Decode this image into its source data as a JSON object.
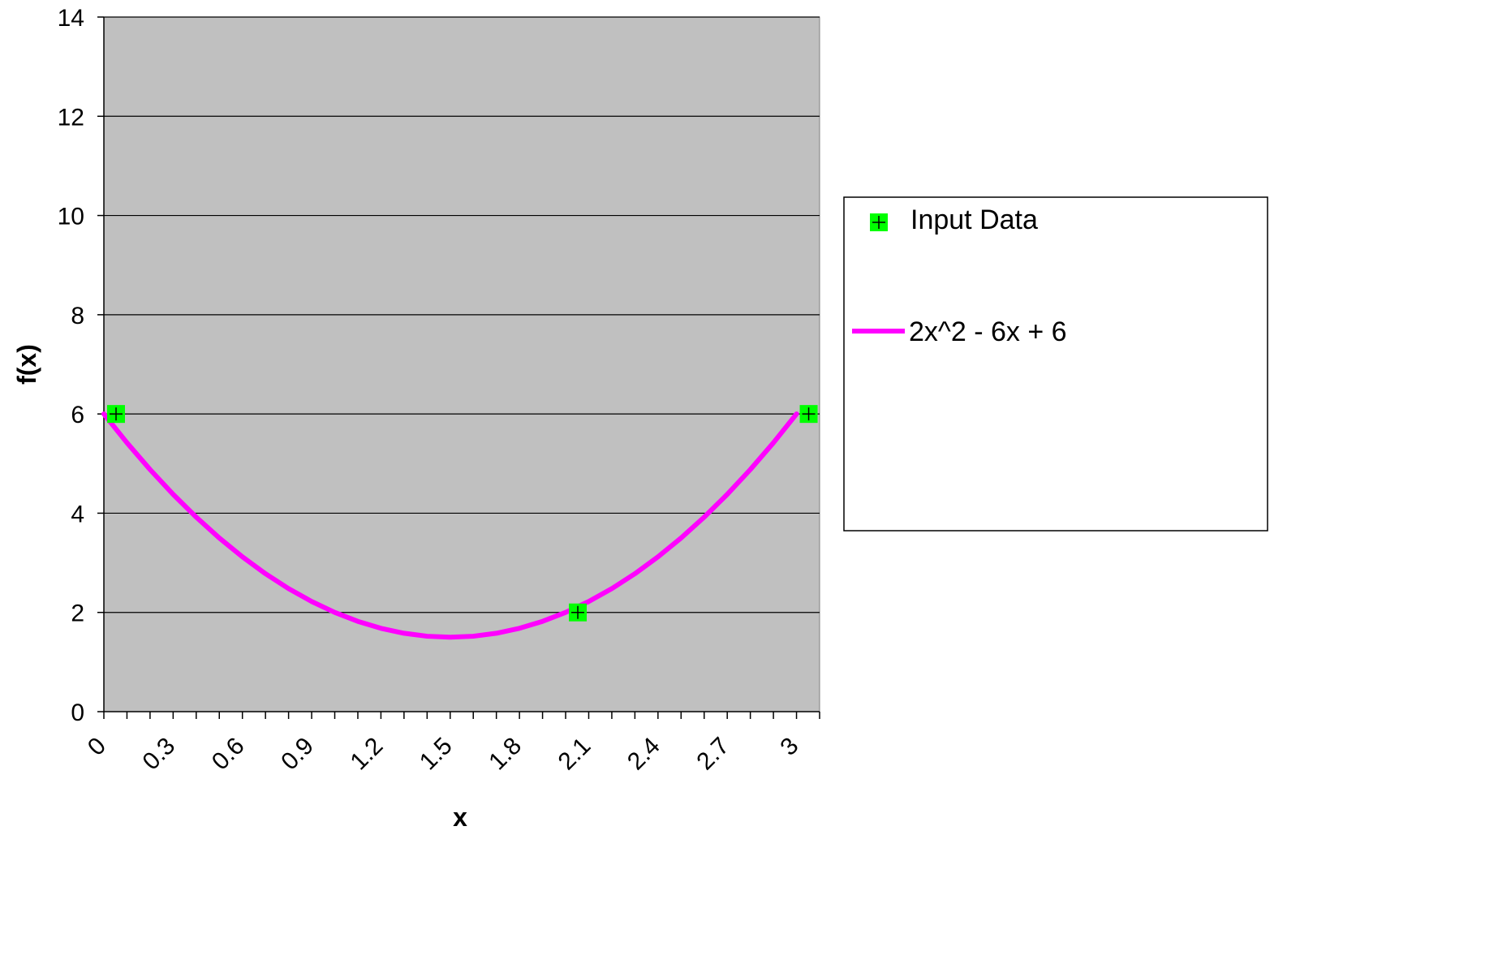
{
  "chart_data": {
    "type": "line",
    "title": "",
    "xlabel": "x",
    "ylabel": "f(x)",
    "xlim": [
      0,
      3.1
    ],
    "ylim": [
      0,
      14
    ],
    "x_ticks": [
      "0",
      "0.3",
      "0.6",
      "0.9",
      "1.2",
      "1.5",
      "1.8",
      "2.1",
      "2.4",
      "2.7",
      "3"
    ],
    "y_ticks": [
      "0",
      "2",
      "4",
      "6",
      "8",
      "10",
      "12",
      "14"
    ],
    "grid": "horizontal",
    "legend_position": "right",
    "colors": {
      "plot_background": "#c0c0c0",
      "curve": "#ff00ff",
      "marker": "#00ff00"
    },
    "series": [
      {
        "name": "Input Data",
        "kind": "scatter",
        "marker": "square-plus",
        "x": [
          0,
          2,
          3
        ],
        "y": [
          6,
          2,
          6
        ]
      },
      {
        "name": "2x^2 - 6x + 6",
        "kind": "line",
        "x": [
          0,
          0.1,
          0.2,
          0.3,
          0.4,
          0.5,
          0.6,
          0.7,
          0.8,
          0.9,
          1.0,
          1.1,
          1.2,
          1.3,
          1.4,
          1.5,
          1.6,
          1.7,
          1.8,
          1.9,
          2.0,
          2.1,
          2.2,
          2.3,
          2.4,
          2.5,
          2.6,
          2.7,
          2.8,
          2.9,
          3.0
        ],
        "y": [
          6,
          5.42,
          4.88,
          4.38,
          3.92,
          3.5,
          3.12,
          2.78,
          2.48,
          2.22,
          2.0,
          1.82,
          1.68,
          1.58,
          1.52,
          1.5,
          1.52,
          1.58,
          1.68,
          1.82,
          2.0,
          2.22,
          2.48,
          2.78,
          3.12,
          3.5,
          3.92,
          4.38,
          4.88,
          5.42,
          6
        ]
      }
    ]
  }
}
